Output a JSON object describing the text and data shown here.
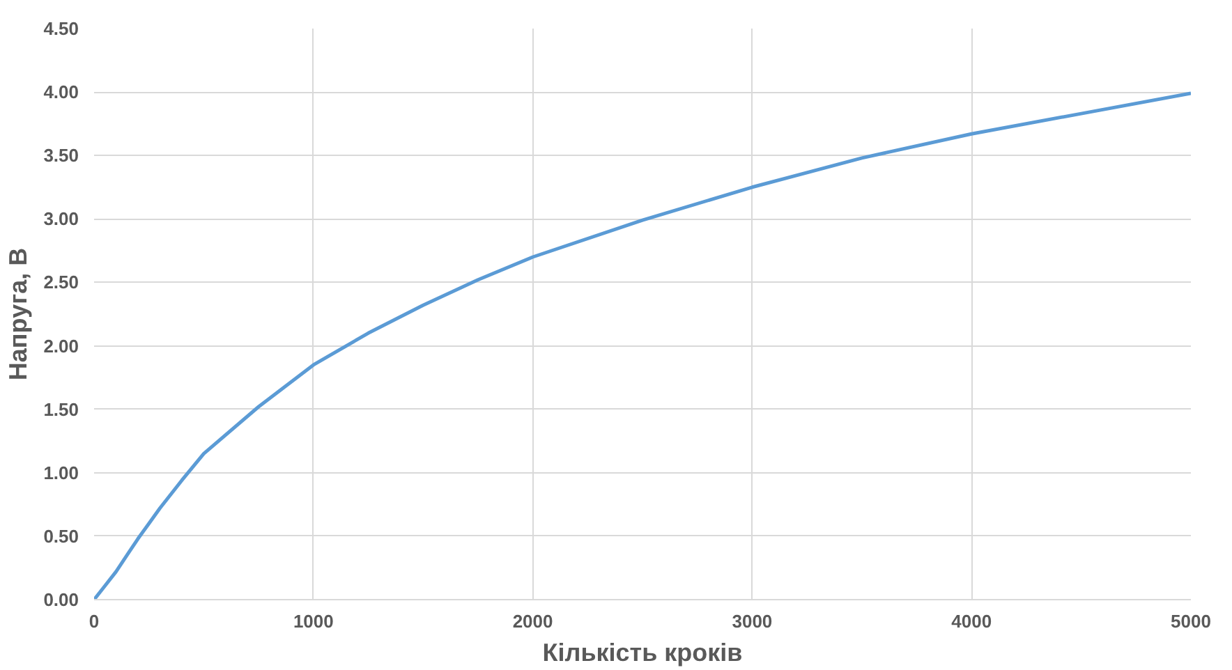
{
  "chart_data": {
    "type": "line",
    "xlabel": "Кількість кроків",
    "ylabel": "Напруга, В",
    "x": [
      0,
      50,
      100,
      150,
      200,
      250,
      300,
      400,
      500,
      750,
      1000,
      1250,
      1500,
      1750,
      2000,
      2500,
      3000,
      3500,
      4000,
      4500,
      5000
    ],
    "series": [
      {
        "color": "#5b9bd5",
        "values": [
          0,
          0.11,
          0.22,
          0.35,
          0.48,
          0.6,
          0.72,
          0.94,
          1.15,
          1.52,
          1.85,
          2.1,
          2.32,
          2.52,
          2.7,
          2.99,
          3.25,
          3.48,
          3.67,
          3.83,
          3.99
        ]
      }
    ],
    "xlim": [
      0,
      5000
    ],
    "xticks": [
      0,
      1000,
      2000,
      3000,
      4000,
      5000
    ],
    "ylim": [
      0,
      4.5
    ],
    "yticks": [
      {
        "value": 0,
        "label": "0.00"
      },
      {
        "value": 0.5,
        "label": "0.50"
      },
      {
        "value": 1,
        "label": "1.00"
      },
      {
        "value": 1.5,
        "label": "1.50"
      },
      {
        "value": 2,
        "label": "2.00"
      },
      {
        "value": 2.5,
        "label": "2.50"
      },
      {
        "value": 3,
        "label": "3.00"
      },
      {
        "value": 3.5,
        "label": "3.50"
      },
      {
        "value": 4,
        "label": "4.00"
      },
      {
        "value": 4.5,
        "label": "4.50"
      }
    ],
    "grid": true,
    "marker": "none",
    "line_style": "solid"
  }
}
